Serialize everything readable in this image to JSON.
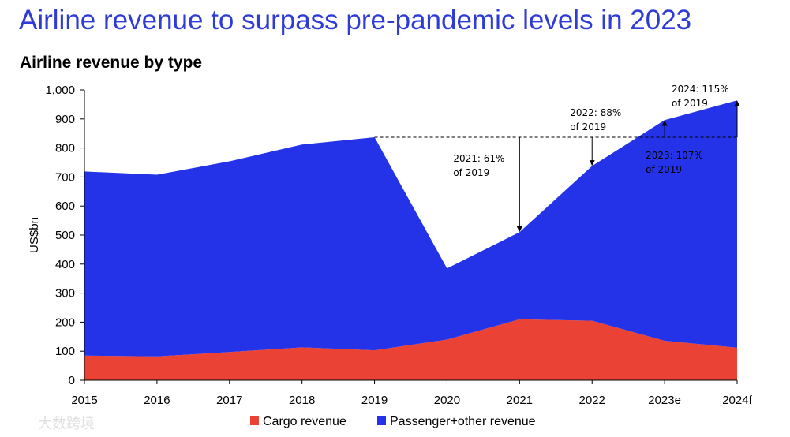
{
  "header": {
    "title": "Airline revenue to surpass pre-pandemic levels in 2023",
    "subtitle": "Airline revenue by type"
  },
  "watermark": "大数跨境",
  "chart_data": {
    "type": "area",
    "stacked": true,
    "categories": [
      "2015",
      "2016",
      "2017",
      "2018",
      "2019",
      "2020",
      "2021",
      "2022",
      "2023e",
      "2024f"
    ],
    "series": [
      {
        "name": "Cargo revenue",
        "color": "#ea4335",
        "values": [
          85,
          82,
          97,
          113,
          103,
          140,
          210,
          205,
          136,
          112
        ]
      },
      {
        "name": "Passenger+other revenue",
        "color": "#2433e8",
        "values": [
          634,
          626,
          657,
          699,
          734,
          245,
          300,
          533,
          760,
          852
        ]
      }
    ],
    "ylabel": "US$bn",
    "xlabel": "",
    "ylim": [
      0,
      1000
    ],
    "yticks": [
      0,
      100,
      200,
      300,
      400,
      500,
      600,
      700,
      800,
      900,
      1000
    ],
    "ytick_labels": [
      "0",
      "100",
      "200",
      "300",
      "400",
      "500",
      "600",
      "700",
      "800",
      "900",
      "1,000"
    ],
    "reference_line": {
      "value": 837,
      "from": "2019",
      "style": "dashed"
    },
    "annotations": [
      {
        "category": "2021",
        "lines": [
          "2021: 61%",
          "of 2019"
        ],
        "arrow": "down"
      },
      {
        "category": "2022",
        "lines": [
          "2022: 88%",
          "of 2019"
        ],
        "arrow": "down"
      },
      {
        "category": "2023e",
        "lines": [
          "2023: 107%",
          "of 2019"
        ],
        "arrow": "up"
      },
      {
        "category": "2024f",
        "lines": [
          "2024: 115%",
          "of 2019"
        ],
        "arrow": "up"
      }
    ],
    "legend_position": "bottom-center"
  }
}
